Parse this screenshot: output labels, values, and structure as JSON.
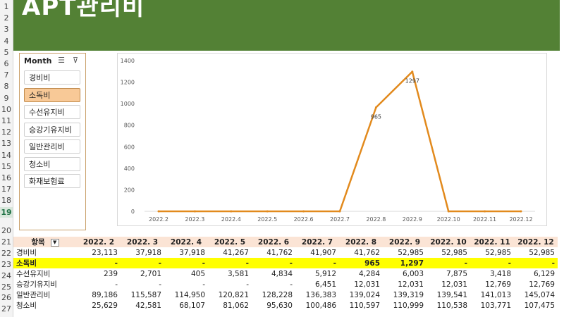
{
  "sheet": {
    "row_numbers": [
      "1",
      "2",
      "3",
      "4",
      "5",
      "6",
      "7",
      "8",
      "9",
      "10",
      "11",
      "12",
      "13",
      "14",
      "15",
      "16",
      "17",
      "18",
      "19",
      "20",
      "21",
      "22",
      "23",
      "24",
      "25",
      "26",
      "27"
    ],
    "active_row": "19",
    "title": "APT관리비"
  },
  "slicer": {
    "header": "Month",
    "multiselect_icon": "multi-select-icon",
    "clear_filter_icon": "clear-filter-icon",
    "items": [
      "경비비",
      "소독비",
      "수선유지비",
      "승강기유지비",
      "일반관리비",
      "청소비",
      "화재보험료"
    ],
    "selected": "소독비"
  },
  "chart_data": {
    "type": "line",
    "x": [
      "2022.2",
      "2022.3",
      "2022.4",
      "2022.5",
      "2022.6",
      "2022.7",
      "2022.8",
      "2022.9",
      "2022.10",
      "2022.11",
      "2022.12"
    ],
    "series": [
      {
        "values": [
          0,
          0,
          0,
          0,
          0,
          0,
          965,
          1297,
          0,
          0,
          0
        ],
        "color": "#e28a1d"
      }
    ],
    "data_labels": [
      "",
      "",
      "",
      "",
      "",
      "",
      "965",
      "1297",
      "",
      "",
      ""
    ],
    "ylim": [
      0,
      1400
    ],
    "yticks": [
      "0",
      "200",
      "400",
      "600",
      "800",
      "1000",
      "1200",
      "1400"
    ],
    "grid": false
  },
  "table": {
    "header_label": "항목",
    "columns": [
      "2022. 2",
      "2022. 3",
      "2022. 4",
      "2022. 5",
      "2022. 6",
      "2022. 7",
      "2022. 8",
      "2022. 9",
      "2022. 10",
      "2022. 11",
      "2022. 12"
    ],
    "rows": [
      {
        "name": "경비비",
        "values": [
          "23,113",
          "37,918",
          "37,918",
          "41,267",
          "41,762",
          "41,907",
          "41,762",
          "52,985",
          "52,985",
          "52,985",
          "52,985"
        ]
      },
      {
        "name": "소독비",
        "values": [
          "-",
          "-",
          "-",
          "-",
          "-",
          "-",
          "965",
          "1,297",
          "-",
          "-",
          "-"
        ],
        "highlight": true
      },
      {
        "name": "수선유지비",
        "values": [
          "239",
          "2,701",
          "405",
          "3,581",
          "4,834",
          "5,912",
          "4,284",
          "6,003",
          "7,875",
          "3,418",
          "6,129"
        ]
      },
      {
        "name": "승강기유지비",
        "values": [
          "-",
          "-",
          "-",
          "-",
          "-",
          "6,451",
          "12,031",
          "12,031",
          "12,031",
          "12,769",
          "12,769"
        ]
      },
      {
        "name": "일반관리비",
        "values": [
          "89,186",
          "115,587",
          "114,950",
          "120,821",
          "128,228",
          "136,383",
          "139,024",
          "139,319",
          "139,541",
          "141,013",
          "145,074"
        ]
      },
      {
        "name": "청소비",
        "values": [
          "25,629",
          "42,581",
          "68,107",
          "81,062",
          "95,630",
          "100,486",
          "110,597",
          "110,999",
          "110,538",
          "103,771",
          "107,475"
        ]
      }
    ]
  },
  "colors": {
    "banner": "#538135",
    "line": "#e28a1d",
    "header_fill": "#fbe4d5",
    "highlight": "#ffff00",
    "slicer_selected": "#f8c997"
  }
}
